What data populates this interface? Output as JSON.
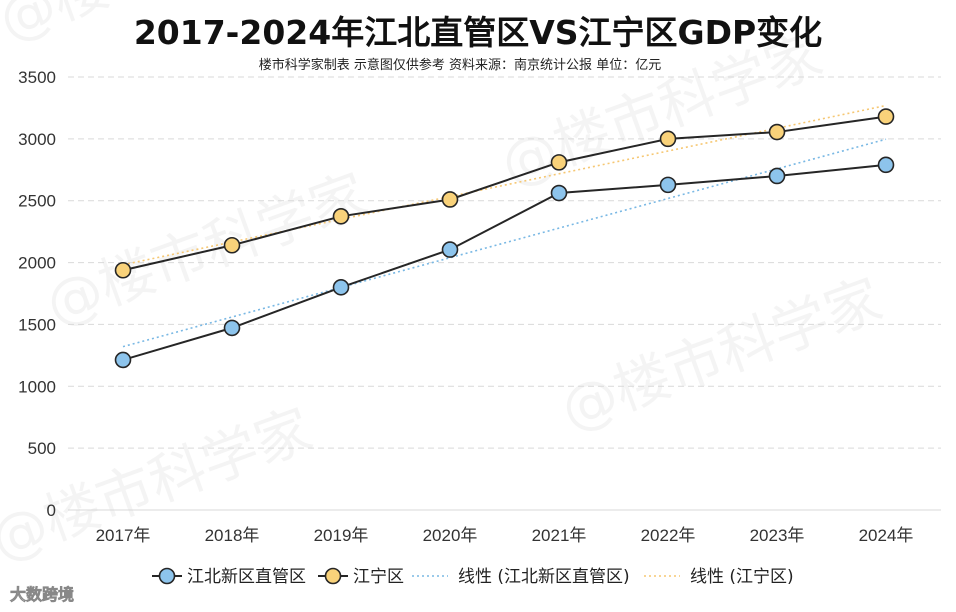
{
  "colors": {
    "series_a": "#8DC4EC",
    "series_b": "#F9D27A",
    "line": "#262626",
    "grid": "#d9d9d9",
    "trend_a": "#79B8E4",
    "trend_b": "#F6C772"
  },
  "watermark": {
    "text": "@楼市科学家",
    "logo": "大数跨境"
  },
  "chart_data": {
    "type": "line",
    "title": "2017-2024年江北直管区VS江宁区GDP变化",
    "subtitle": "楼市科学家制表 示意图仅供参考 资料来源：南京统计公报 单位：亿元",
    "xlabel": "",
    "ylabel": "",
    "categories": [
      "2017年",
      "2018年",
      "2019年",
      "2020年",
      "2021年",
      "2022年",
      "2023年",
      "2024年"
    ],
    "ylim": [
      0,
      3500
    ],
    "yticks": [
      0,
      500,
      1000,
      1500,
      2000,
      2500,
      3000,
      3500
    ],
    "grid": true,
    "legend_position": "bottom",
    "series": [
      {
        "name": "江北新区直管区",
        "values": [
          1213,
          1472,
          1800,
          2105,
          2562,
          2628,
          2700,
          2790
        ]
      },
      {
        "name": "江宁区",
        "values": [
          1938,
          2140,
          2374,
          2510,
          2810,
          3000,
          3055,
          3180
        ]
      }
    ],
    "trendlines": [
      {
        "name": "线性 (江北新区直管区)",
        "of_series": 0
      },
      {
        "name": "线性 (江宁区)",
        "of_series": 1
      }
    ]
  }
}
